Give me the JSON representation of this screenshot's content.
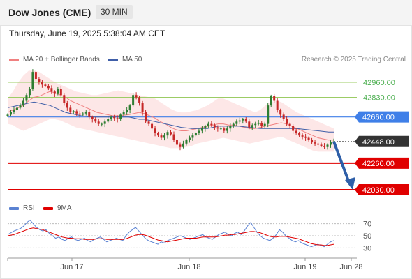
{
  "header": {
    "title": "Dow Jones (CME)",
    "interval": "30 MIN"
  },
  "datetime": "Thursday, June 19, 2025 5:38:04 AM CET",
  "legend": {
    "ma20": "MA 20 + Bollinger Bands",
    "ma50": "MA 50",
    "credit": "Research © 2025 Trading Central"
  },
  "rsi_legend": {
    "rsi": "RSI",
    "ma9": "9MA"
  },
  "colors": {
    "ma20": "#f08080",
    "ma50": "#3f5fa8",
    "bollinger_fill": "#fde4e4",
    "resistance": "#9ccc65",
    "pivot": "#3f7fe8",
    "support": "#e00000",
    "current": "#333333",
    "up_candle": "#2e7d32",
    "down_candle": "#c62828",
    "arrow": "#2f5fa8",
    "rsi": "#5a82d2",
    "rsi_ma": "#e00000"
  },
  "chart_data": [
    {
      "type": "candlestick",
      "title": "Dow Jones (CME) 30 MIN",
      "x_ticks": [
        "Jun 17",
        "Jun 18",
        "Jun 19",
        "Jun 28"
      ],
      "levels": [
        {
          "value": 42960.0,
          "label": "42960.00",
          "kind": "resistance"
        },
        {
          "value": 42830.0,
          "label": "42830.00",
          "kind": "resistance"
        },
        {
          "value": 42660.0,
          "label": "42660.00",
          "kind": "pivot"
        },
        {
          "value": 42448.0,
          "label": "42448.00",
          "kind": "current"
        },
        {
          "value": 42260.0,
          "label": "42260.00",
          "kind": "support"
        },
        {
          "value": 42030.0,
          "label": "42030.00",
          "kind": "support"
        }
      ],
      "close_series": [
        42680,
        42705,
        42720,
        42740,
        42760,
        42800,
        42850,
        42900,
        43050,
        42990,
        42960,
        42940,
        42930,
        42910,
        42880,
        42860,
        42900,
        42850,
        42780,
        42740,
        42700,
        42710,
        42690,
        42680,
        42690,
        42700,
        42660,
        42640,
        42620,
        42600,
        42600,
        42620,
        42640,
        42660,
        42650,
        42640,
        42680,
        42700,
        42720,
        42760,
        42850,
        42830,
        42780,
        42700,
        42620,
        42600,
        42560,
        42520,
        42500,
        42480,
        42500,
        42530,
        42510,
        42460,
        42420,
        42400,
        42430,
        42460,
        42480,
        42500,
        42520,
        42540,
        42560,
        42580,
        42600,
        42590,
        42570,
        42560,
        42560,
        42540,
        42560,
        42580,
        42600,
        42620,
        42630,
        42640,
        42620,
        42570,
        42590,
        42600,
        42610,
        42580,
        42600,
        42760,
        42840,
        42800,
        42720,
        42680,
        42640,
        42600,
        42580,
        42540,
        42520,
        42500,
        42490,
        42480,
        42460,
        42440,
        42430,
        42420,
        42410,
        42400,
        42420,
        42440,
        42448
      ],
      "ma20": [
        42700,
        42720,
        42740,
        42760,
        42800,
        42830,
        42840,
        42860,
        42880,
        42870,
        42850,
        42830,
        42800,
        42780,
        42760,
        42740,
        42720,
        42700,
        42690,
        42680,
        42670,
        42670,
        42675,
        42680,
        42690,
        42700,
        42690,
        42670,
        42650,
        42620,
        42600,
        42570,
        42550,
        42540,
        42540,
        42550,
        42560,
        42570,
        42580,
        42590,
        42600,
        42600,
        42590,
        42590,
        42580,
        42570,
        42560,
        42560,
        42570,
        42580,
        42590,
        42600,
        42610,
        42600,
        42580,
        42560,
        42540,
        42520,
        42500,
        42480,
        42470,
        42460,
        42460
      ],
      "bollinger_upper": [
        42820,
        42880,
        42960,
        43020,
        43060,
        43060,
        43050,
        43020,
        42990,
        42960,
        42940,
        42920,
        42900,
        42880,
        42870,
        42860,
        42850,
        42850,
        42860,
        42870,
        42880,
        42890,
        42880,
        42870,
        42860,
        42850,
        42840,
        42830,
        42820,
        42790,
        42760,
        42730,
        42710,
        42700,
        42700,
        42710,
        42720,
        42740,
        42760,
        42790,
        42820,
        42820,
        42800,
        42780,
        42760,
        42740,
        42720,
        42700,
        42720,
        42760,
        42790,
        42800,
        42790,
        42760,
        42730,
        42700,
        42680,
        42660,
        42640,
        42620,
        42600,
        42580,
        42560
      ],
      "bollinger_lower": [
        42600,
        42590,
        42560,
        42540,
        42560,
        42580,
        42600,
        42620,
        42640,
        42640,
        42630,
        42610,
        42590,
        42570,
        42560,
        42550,
        42540,
        42530,
        42520,
        42510,
        42500,
        42490,
        42480,
        42470,
        42460,
        42450,
        42440,
        42430,
        42420,
        42410,
        42400,
        42390,
        42390,
        42390,
        42400,
        42410,
        42430,
        42440,
        42450,
        42460,
        42470,
        42480,
        42470,
        42460,
        42450,
        42440,
        42430,
        42440,
        42450,
        42460,
        42470,
        42480,
        42490,
        42470,
        42450,
        42430,
        42410,
        42390,
        42370,
        42360,
        42360,
        42360,
        42360
      ],
      "ma50": [
        42740,
        42750,
        42760,
        42770,
        42780,
        42790,
        42780,
        42770,
        42760,
        42740,
        42720,
        42700,
        42690,
        42680,
        42670,
        42665,
        42660,
        42660,
        42660,
        42660,
        42660,
        42660,
        42660,
        42660,
        42650,
        42640,
        42640,
        42630,
        42620,
        42610,
        42600,
        42590,
        42580,
        42570,
        42565,
        42560,
        42560,
        42560,
        42560,
        42570,
        42580,
        42580,
        42580,
        42580,
        42580,
        42575,
        42570,
        42565,
        42560,
        42560,
        42560,
        42560,
        42560,
        42560,
        42560,
        42560,
        42555,
        42550,
        42545,
        42540,
        42535,
        42530,
        42530
      ],
      "projection": {
        "from": 42448.0,
        "to": 42030.0
      },
      "ylim": [
        41950,
        43120
      ]
    },
    {
      "type": "line",
      "title": "RSI",
      "series": [
        {
          "name": "RSI",
          "values": [
            52,
            55,
            58,
            60,
            62,
            66,
            72,
            76,
            70,
            64,
            60,
            58,
            60,
            54,
            50,
            46,
            48,
            44,
            42,
            46,
            48,
            44,
            42,
            44,
            46,
            42,
            40,
            44,
            46,
            48,
            44,
            40,
            42,
            44,
            46,
            44,
            42,
            50,
            56,
            60,
            64,
            58,
            52,
            46,
            42,
            40,
            38,
            36,
            40,
            38,
            42,
            44,
            46,
            48,
            50,
            48,
            46,
            44,
            46,
            48,
            50,
            52,
            48,
            46,
            44,
            48,
            52,
            54,
            56,
            52,
            50,
            54,
            56,
            52,
            58,
            66,
            72,
            64,
            56,
            50,
            46,
            44,
            42,
            46,
            52,
            60,
            56,
            50,
            46,
            42,
            40,
            42,
            38,
            36,
            34,
            32,
            34,
            36,
            34,
            32,
            36,
            40,
            42
          ]
        },
        {
          "name": "9MA",
          "values": [
            50,
            51,
            52,
            54,
            56,
            58,
            60,
            62,
            63,
            62,
            61,
            60,
            58,
            56,
            54,
            52,
            50,
            48,
            47,
            46,
            46,
            45,
            45,
            45,
            44,
            44,
            44,
            44,
            45,
            45,
            45,
            44,
            44,
            44,
            44,
            44,
            44,
            45,
            47,
            49,
            51,
            52,
            52,
            51,
            49,
            47,
            45,
            43,
            42,
            41,
            40,
            41,
            42,
            43,
            44,
            45,
            46,
            46,
            46,
            46,
            47,
            48,
            48,
            48,
            48,
            48,
            49,
            50,
            51,
            51,
            52,
            52,
            53,
            54,
            55,
            56,
            57,
            57,
            56,
            55,
            53,
            51,
            49,
            48,
            48,
            49,
            49,
            49,
            48,
            47,
            46,
            45,
            43,
            41,
            39,
            37,
            36,
            35,
            35,
            34,
            34,
            35,
            36
          ]
        }
      ],
      "y_ticks": [
        "70",
        "50",
        "30"
      ],
      "ylim": [
        20,
        80
      ]
    }
  ]
}
